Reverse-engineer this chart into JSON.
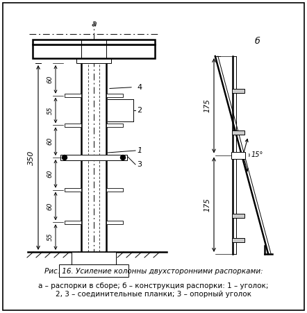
{
  "fig_width": 4.42,
  "fig_height": 4.51,
  "dpi": 100,
  "bg_color": "#ffffff",
  "title_text": "Рис. 16. Усиление колонны двухсторонними распорками:",
  "subtitle_text": "а – распорки в сборе; б – конструкция распорки: 1 – уголок;\n2, 3 – соединительные планки; 3 – опорный уголок",
  "label_a": "а",
  "label_b": "б",
  "seg_heights": [
    60,
    55,
    60,
    60,
    60,
    55
  ],
  "dim_350": "350",
  "dim_175": "175",
  "dim_15deg": "15°",
  "labels": [
    "1",
    "2",
    "3",
    "4"
  ]
}
